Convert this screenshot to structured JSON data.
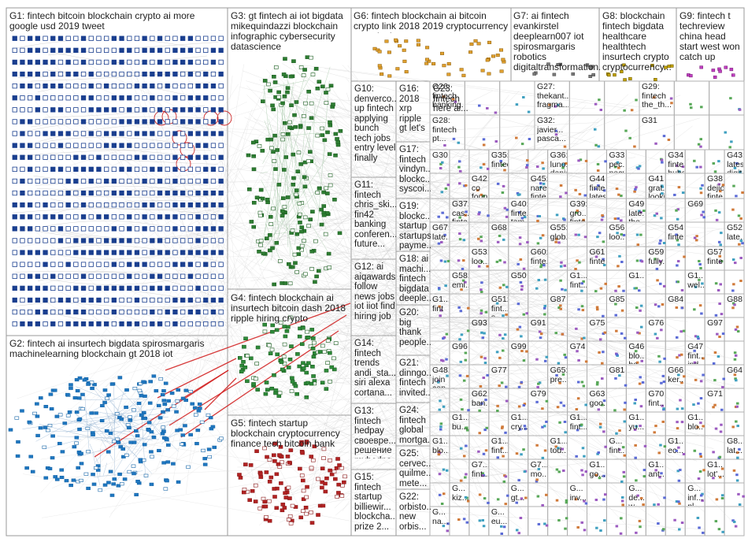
{
  "groups": [
    {
      "id": "G1",
      "label": "G1: fintech bitcoin blockchain crypto ai more google usd 2019 tweet",
      "color": "#1a3f8f",
      "shape": "square"
    },
    {
      "id": "G2",
      "label": "G2: fintech ai insurtech bigdata spirosmargaris machinelearning blockchain gt 2018 iot",
      "color": "#1f77c0",
      "shape": "mixed"
    },
    {
      "id": "G3",
      "label": "G3: gt fintech ai iot bigdata mikequindazzi blockchain infographic cybersecurity datascience",
      "color": "#2e7d32",
      "shape": "mixed"
    },
    {
      "id": "G4",
      "label": "G4: fintech blockchain ai insurtech bitcoin dash 2018 ripple hiring crypto",
      "color": "#2e8b3a",
      "shape": "mixed"
    },
    {
      "id": "G5",
      "label": "G5: fintech startup blockchain cryptocurrency finance tech bitcoin bank news trade",
      "color": "#b22222",
      "shape": "mixed"
    },
    {
      "id": "G6",
      "label": "G6: fintech blockchain ai bitcoin crypto link 2018 2019 cryptocurrency ume_kyd",
      "color": "#e0a030",
      "shape": "mixed"
    },
    {
      "id": "G7",
      "label": "G7: ai fintech evankirstel deeplearn007 iot spirosmargaris robotics digitaltransformation...",
      "color": "#7a7a7a",
      "shape": "mixed"
    },
    {
      "id": "G8",
      "label": "G8: blockchain fintech bigdata healthcare healthtech insurtech crypto cryptocurrency...",
      "color": "#c0a000",
      "shape": "mixed"
    },
    {
      "id": "G9",
      "label": "G9: fintech t techreview china head start west won catch up",
      "color": "#c040c0",
      "shape": "mixed"
    },
    {
      "id": "G10",
      "label": "G10: denverco... up fintech applying bunch tech jobs entry level finally",
      "color": "#607d8b",
      "shape": "mixed"
    },
    {
      "id": "G11",
      "label": "G11: fintech chris_ski... fin42 banking conferen... future...",
      "color": "#3f51b5",
      "shape": "mixed"
    },
    {
      "id": "G12",
      "label": "G12: ai aiqawards follow news jobs iot iiot find hiring job",
      "color": "#5c6bc0",
      "shape": "mixed"
    },
    {
      "id": "G13",
      "label": "G13: fintech hedpay своевре... решение myhedpa...",
      "color": "#6d4c41",
      "shape": "mixed"
    },
    {
      "id": "G14",
      "label": "G14: fintech trends andi_sta... siri alexa cortana...",
      "color": "#00897b",
      "shape": "mixed"
    },
    {
      "id": "G15",
      "label": "G15: fintech startup billiewir... blockcha... prize 2...",
      "color": "#8e24aa",
      "shape": "mixed"
    },
    {
      "id": "G16",
      "label": "G16: 2018 xrp ripple gt let's",
      "color": "#00acc1",
      "shape": "mixed"
    },
    {
      "id": "G17",
      "label": "G17: fintech vindyn... blockc... syscoi...",
      "color": "#43a047",
      "shape": "mixed"
    },
    {
      "id": "G18",
      "label": "G18: ai machi... fintech bigdata deeple...",
      "color": "#1e88e5",
      "shape": "mixed"
    },
    {
      "id": "G19",
      "label": "G19: blockc... startup startups payme...",
      "color": "#f4511e",
      "shape": "mixed"
    },
    {
      "id": "G20",
      "label": "G20: big thank people...",
      "color": "#3949ab",
      "shape": "mixed"
    },
    {
      "id": "G21",
      "label": "G21: dinngo... fintech invited...",
      "color": "#d81b60",
      "shape": "mixed"
    },
    {
      "id": "G22",
      "label": "G22: orbisto... new orbis...",
      "color": "#546e7a",
      "shape": "mixed"
    },
    {
      "id": "G23",
      "label": "G23: fintech here ai...",
      "color": "#7cb342",
      "shape": "mixed"
    },
    {
      "id": "G24",
      "label": "G24: fintech global mortga...",
      "color": "#5e35b1",
      "shape": "mixed"
    },
    {
      "id": "G25",
      "label": "G25: cervec... quilme... mete...",
      "color": "#fb8c00",
      "shape": "mixed"
    }
  ],
  "small_labels": [
    {
      "t": "G26:\nfintech\nbanking..."
    },
    {
      "t": "G27:\nthekant...\nfragma..."
    },
    {
      "t": "G29:\nfintech\nthe_th..."
    },
    {
      "t": "G28:\nfintech\npt..."
    },
    {
      "t": "G32:\njavier...\npasca..."
    },
    {
      "t": "G31"
    },
    {
      "t": "G30"
    },
    {
      "t": "G35:\nfintech"
    },
    {
      "t": "G36:\nluno...\ndanie..."
    },
    {
      "t": "G33:\npec...\npecul..."
    },
    {
      "t": "G34:\nfinte...\nhubs..."
    },
    {
      "t": "G43:\nlatest\ndigit..."
    },
    {
      "t": "G42:\nco\nfoun..."
    },
    {
      "t": "G45:\nnare...\nfinte..."
    },
    {
      "t": "G44:\nfinte...\nlates..."
    },
    {
      "t": "G41:\ngrat...\nlooki..."
    },
    {
      "t": "G38:\ndejio...\nfinte..."
    },
    {
      "t": "G37:\ncas...\nfinte..."
    },
    {
      "t": "G40:\nfinte...\ntem..."
    },
    {
      "t": "G39:\ngro...\nfinte..."
    },
    {
      "t": "G49:\nlate...\nthe..."
    },
    {
      "t": "G69"
    },
    {
      "t": "G67:\nlate..."
    },
    {
      "t": "G68"
    },
    {
      "t": "G55:\nglob..."
    },
    {
      "t": "G56:\nloo..."
    },
    {
      "t": "G54:\nfinte..."
    },
    {
      "t": "G52:\nlate..."
    },
    {
      "t": "G53:\nloo..."
    },
    {
      "t": "G60:\nfinte..."
    },
    {
      "t": "G61:\nfinte..."
    },
    {
      "t": "G59:\nfully..."
    },
    {
      "t": "G57:\nfinte..."
    },
    {
      "t": "G58:\nemi..."
    },
    {
      "t": "G50"
    },
    {
      "t": "G1...\nfint..."
    },
    {
      "t": "G1..."
    },
    {
      "t": "G1...\nwel..."
    },
    {
      "t": "G1...\nfint"
    },
    {
      "t": "G51:\nfint...\ns..."
    },
    {
      "t": "G87"
    },
    {
      "t": "G85"
    },
    {
      "t": "G84"
    },
    {
      "t": "G88"
    },
    {
      "t": "G93"
    },
    {
      "t": "G91"
    },
    {
      "t": "G75"
    },
    {
      "t": "G76"
    },
    {
      "t": "G97"
    },
    {
      "t": "G96"
    },
    {
      "t": "G99"
    },
    {
      "t": "G74"
    },
    {
      "t": "G46:\nblo...\nba..."
    },
    {
      "t": "G47:\nfint...\nind..."
    },
    {
      "t": "G48:\njoin\ncon..."
    },
    {
      "t": "G77"
    },
    {
      "t": "G65:\npre..."
    },
    {
      "t": "G81"
    },
    {
      "t": "G66:\nker..."
    },
    {
      "t": "G64"
    },
    {
      "t": "G62:\nban..."
    },
    {
      "t": "G79"
    },
    {
      "t": "G63:\ngoo..."
    },
    {
      "t": "G70:\nfint..."
    },
    {
      "t": "G71"
    },
    {
      "t": "G1...\nbu..."
    },
    {
      "t": "G1...\ncry..."
    },
    {
      "t": "G1...\nfint..."
    },
    {
      "t": "G1...\nyu..."
    },
    {
      "t": "G1...\nblo..."
    },
    {
      "t": "G1...\nblo..."
    },
    {
      "t": "G1...\nfint..."
    },
    {
      "t": "G1...\ntod..."
    },
    {
      "t": "G...\nfint..."
    },
    {
      "t": "G1...\nec..."
    },
    {
      "t": "G8...\nlat..."
    },
    {
      "t": "G7...\nfint..."
    },
    {
      "t": "G7...\nmo..."
    },
    {
      "t": "G1...\ngo..."
    },
    {
      "t": "G1...\nant..."
    },
    {
      "t": "G1...\nlot'..."
    },
    {
      "t": "G...\nkiz..."
    },
    {
      "t": "G...\ngt..."
    },
    {
      "t": "G...\ninv..."
    },
    {
      "t": "G...\nde...\nw..."
    },
    {
      "t": "G...\ninf...\npl..."
    },
    {
      "t": "G...\nna..."
    },
    {
      "t": "G...\neu..."
    }
  ]
}
